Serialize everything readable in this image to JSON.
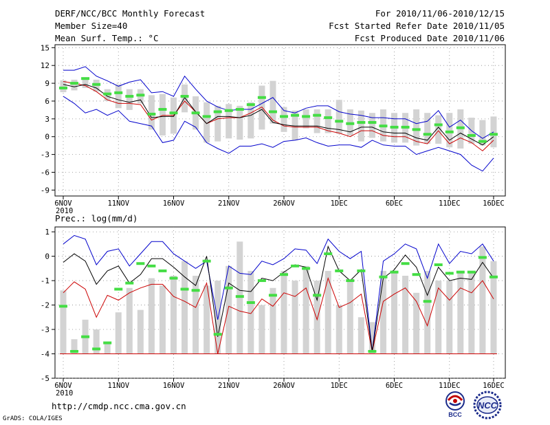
{
  "header": {
    "title_line1": "DERF/NCC/BCC Monthly Forecast",
    "title_line2": "Member Size=40",
    "title_line3": "Mean Surf. Temp.: °C",
    "right_line1": "For 2010/11/06-2010/12/15",
    "right_line2": "Fcst Started Refer Date 2010/11/05",
    "right_line3": "Fcst Produced Date 2010/11/06"
  },
  "footer": {
    "url": "http://cmdp.ncc.cma.gov.cn",
    "credit": "GrADS: COLA/IGES",
    "logo_bcc_text": "BCC",
    "logo_ncc_text": "NCC"
  },
  "colors": {
    "box": "#d3d3d3",
    "mean": "#44dd44",
    "upper": "#0000cc",
    "lower": "#cc0000",
    "median": "#000000",
    "grid": "#888888"
  },
  "chart_data": [
    {
      "type": "box-ensemble",
      "title": "Mean Surf. Temp.: °C",
      "ylim": [
        -10,
        15.5
      ],
      "yticks": [
        -9,
        -6,
        -3,
        0,
        3,
        6,
        9,
        12,
        15
      ],
      "xticks": [
        {
          "day": 0,
          "label": "6NOV",
          "sub": "2010"
        },
        {
          "day": 5,
          "label": "11NOV"
        },
        {
          "day": 10,
          "label": "16NOV"
        },
        {
          "day": 15,
          "label": "21NOV"
        },
        {
          "day": 20,
          "label": "26NOV"
        },
        {
          "day": 25,
          "label": "1DEC"
        },
        {
          "day": 30,
          "label": "6DEC"
        },
        {
          "day": 35,
          "label": "11DEC"
        },
        {
          "day": 39,
          "label": "16DEC"
        }
      ],
      "box_low": [
        7.5,
        7.8,
        8.2,
        7.6,
        6.0,
        4.8,
        4.5,
        5.6,
        1.2,
        0.2,
        0.5,
        4.1,
        1.2,
        -1.0,
        -0.8,
        -0.3,
        -0.5,
        -0.3,
        1.2,
        2.2,
        0.8,
        -0.6,
        1.4,
        0.6,
        0.6,
        0.5,
        0.2,
        -0.8,
        -0.2,
        -0.8,
        -1.0,
        -1.0,
        -1.5,
        -1.2,
        -1.2,
        -1.8,
        -2.0,
        -1.2,
        -1.5,
        -1.8
      ],
      "box_high": [
        9.5,
        9.6,
        10.0,
        9.6,
        8.0,
        8.8,
        8.0,
        8.0,
        7.0,
        7.2,
        6.6,
        8.8,
        6.8,
        5.8,
        5.2,
        5.5,
        5.2,
        5.8,
        8.6,
        9.4,
        5.0,
        4.4,
        4.6,
        4.6,
        4.6,
        6.2,
        4.6,
        4.4,
        4.0,
        4.6,
        4.0,
        4.0,
        4.6,
        4.0,
        3.6,
        4.0,
        4.6,
        3.2,
        2.8,
        3.4
      ],
      "mean": [
        8.2,
        9.0,
        9.8,
        8.8,
        7.2,
        7.4,
        6.8,
        7.0,
        3.8,
        4.6,
        4.0,
        6.8,
        4.0,
        3.4,
        4.2,
        4.4,
        4.6,
        5.4,
        6.6,
        4.2,
        3.4,
        3.6,
        3.4,
        3.6,
        3.2,
        2.6,
        2.2,
        2.4,
        2.4,
        1.8,
        1.6,
        1.6,
        1.2,
        0.4,
        2.0,
        0.8,
        1.5,
        0.2,
        -0.8,
        0.4
      ],
      "upper": [
        11.2,
        11.2,
        11.8,
        10.2,
        9.4,
        8.5,
        9.2,
        9.6,
        7.4,
        7.6,
        6.8,
        10.2,
        8.0,
        6.0,
        5.0,
        4.4,
        4.6,
        4.6,
        5.6,
        6.6,
        4.4,
        4.0,
        4.8,
        5.2,
        5.2,
        4.2,
        3.8,
        3.6,
        3.2,
        3.2,
        3.0,
        3.0,
        2.2,
        2.6,
        4.4,
        1.6,
        2.8,
        1.0,
        -0.3,
        0.8
      ],
      "median": [
        8.8,
        8.4,
        8.8,
        8.2,
        6.8,
        6.2,
        5.8,
        6.2,
        3.2,
        3.4,
        3.4,
        6.6,
        4.2,
        2.2,
        3.4,
        3.4,
        3.2,
        3.6,
        4.6,
        2.4,
        2.0,
        1.8,
        1.8,
        1.8,
        1.4,
        1.2,
        0.8,
        1.6,
        1.6,
        0.8,
        0.6,
        0.6,
        -0.2,
        -0.6,
        1.6,
        -0.6,
        0.6,
        -0.4,
        -1.4,
        0.0
      ],
      "lower": [
        9.3,
        9.0,
        8.6,
        7.6,
        6.2,
        5.6,
        5.6,
        5.4,
        2.8,
        3.6,
        3.6,
        6.0,
        4.2,
        2.2,
        3.0,
        3.2,
        3.2,
        4.0,
        5.0,
        2.8,
        1.8,
        1.6,
        1.6,
        1.6,
        1.0,
        0.6,
        0.0,
        1.0,
        1.0,
        0.2,
        0.0,
        0.0,
        -0.8,
        -1.2,
        1.0,
        -1.2,
        -0.2,
        -1.0,
        -2.4,
        -0.6
      ],
      "lowest": [
        6.8,
        5.6,
        4.0,
        4.6,
        3.6,
        4.4,
        2.6,
        2.2,
        1.8,
        -1.0,
        -0.6,
        2.6,
        1.6,
        -1.0,
        -2.0,
        -2.8,
        -1.6,
        -1.6,
        -1.2,
        -1.8,
        -0.8,
        -0.6,
        -0.2,
        -1.0,
        -1.6,
        -1.4,
        -1.4,
        -1.8,
        -0.6,
        -1.4,
        -1.6,
        -1.6,
        -3.0,
        -2.4,
        -1.8,
        -2.4,
        -3.0,
        -4.8,
        -5.8,
        -3.6
      ]
    },
    {
      "type": "box-ensemble",
      "title": "Prec.: log(mm/d)",
      "ylim": [
        -5,
        1.2
      ],
      "yticks": [
        -5,
        -4,
        -3,
        -2,
        -1,
        0,
        1
      ],
      "xticks": [
        {
          "day": 0,
          "label": "6NOV",
          "sub": "2010"
        },
        {
          "day": 5,
          "label": "11NOV"
        },
        {
          "day": 10,
          "label": "16NOV"
        },
        {
          "day": 15,
          "label": "21NOV"
        },
        {
          "day": 20,
          "label": "26NOV"
        },
        {
          "day": 25,
          "label": "1DEC"
        },
        {
          "day": 30,
          "label": "6DEC"
        },
        {
          "day": 35,
          "label": "11DEC"
        },
        {
          "day": 39,
          "label": "16DEC"
        }
      ],
      "box_low": [
        -4,
        -4,
        -4,
        -4,
        -4,
        -4,
        -4,
        -4,
        -4,
        -4,
        -4,
        -4,
        -4,
        -4,
        -4,
        -4,
        -4,
        -4,
        -4,
        -4,
        -4,
        -4,
        -4,
        -4,
        -4,
        -4,
        -4,
        -4,
        -4,
        -4,
        -4,
        -4,
        -4,
        -4,
        -4,
        -4,
        -4,
        -4,
        -4,
        -4
      ],
      "box_high": [
        -1.4,
        -3.4,
        -2.6,
        -3.0,
        -3.6,
        -2.3,
        -1.3,
        -2.2,
        -0.9,
        -1.2,
        -0.8,
        -0.2,
        -0.8,
        -1.2,
        -1.0,
        -0.4,
        0.6,
        -0.6,
        -2.0,
        -1.3,
        -0.6,
        -1.0,
        -0.4,
        -1.0,
        -0.6,
        -2.0,
        -1.0,
        -2.5,
        -2.7,
        -0.6,
        -0.6,
        -0.8,
        -1.5,
        -0.6,
        -1.0,
        -1.0,
        -0.6,
        -0.6,
        0.4,
        -0.2
      ],
      "mean": [
        -2.05,
        -3.9,
        -3.3,
        -3.8,
        -3.55,
        -1.35,
        -1.1,
        -0.3,
        -0.4,
        -0.6,
        -0.9,
        -1.35,
        -1.4,
        -0.2,
        -3.2,
        -1.3,
        -1.65,
        -1.9,
        -1.0,
        -1.6,
        -0.75,
        -0.4,
        -0.5,
        -1.6,
        0.1,
        -0.6,
        -1.0,
        -0.6,
        -3.9,
        -0.85,
        -0.65,
        -0.3,
        -0.75,
        -1.85,
        -0.35,
        -0.7,
        -0.65,
        -0.65,
        -0.05,
        -0.85
      ],
      "upper": [
        0.5,
        0.85,
        0.7,
        -0.35,
        0.2,
        0.3,
        -0.4,
        0.1,
        0.6,
        0.6,
        0.1,
        -0.2,
        -0.5,
        -0.2,
        -2.6,
        -0.4,
        -0.7,
        -0.75,
        -0.2,
        -0.35,
        -0.1,
        0.3,
        0.25,
        -0.3,
        0.7,
        0.2,
        -0.1,
        0.2,
        -3.9,
        -0.2,
        0.1,
        0.5,
        0.3,
        -0.9,
        0.5,
        -0.3,
        0.2,
        0.1,
        0.5,
        -0.2
      ],
      "median": [
        -0.25,
        0.1,
        -0.2,
        -1.15,
        -0.6,
        -0.4,
        -1.1,
        -0.75,
        -0.1,
        -0.1,
        -0.45,
        -0.85,
        -1.2,
        0.0,
        -3.3,
        -1.1,
        -1.4,
        -1.45,
        -0.9,
        -1.0,
        -0.65,
        -0.35,
        -0.45,
        -1.8,
        0.4,
        -0.6,
        -1.0,
        -0.55,
        -3.9,
        -0.9,
        -0.55,
        0.05,
        -0.45,
        -1.6,
        -0.45,
        -1.0,
        -0.9,
        -0.95,
        -0.25,
        -0.9
      ],
      "lower": [
        -1.5,
        -1.05,
        -1.35,
        -2.5,
        -1.6,
        -1.8,
        -1.5,
        -1.3,
        -1.15,
        -1.15,
        -1.65,
        -1.85,
        -2.1,
        -1.1,
        -4.0,
        -2.05,
        -2.25,
        -2.35,
        -1.75,
        -2.05,
        -1.5,
        -1.65,
        -1.3,
        -2.6,
        -0.9,
        -2.1,
        -1.9,
        -1.55,
        -3.9,
        -1.85,
        -1.55,
        -1.3,
        -1.85,
        -2.85,
        -1.3,
        -1.8,
        -1.3,
        -1.5,
        -1.0,
        -1.75
      ],
      "lowest": [
        -4,
        -4,
        -4,
        -4,
        -4,
        -4,
        -4,
        -4,
        -4,
        -4,
        -4,
        -4,
        -4,
        -4,
        -4,
        -4,
        -4,
        -4,
        -4,
        -4,
        -4,
        -4,
        -4,
        -4,
        -4,
        -4,
        -4,
        -4,
        -4,
        -4,
        -4,
        -4,
        -4,
        -4,
        -4,
        -4,
        -4,
        -4,
        -4,
        -4
      ]
    }
  ]
}
